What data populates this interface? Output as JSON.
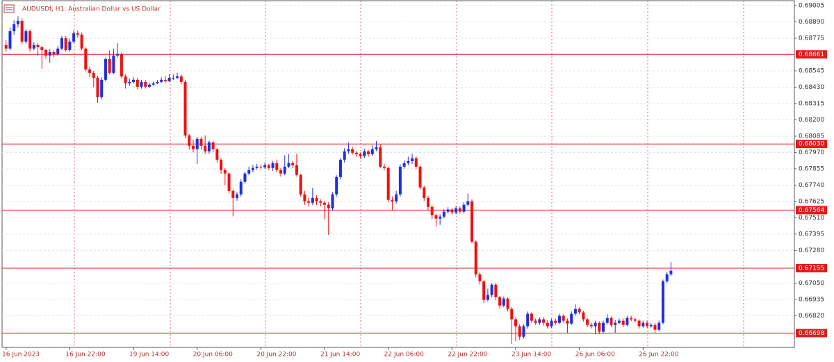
{
  "chart_data": {
    "type": "candlestick",
    "title": "AUDUSDf, H1:  Australian Dollar vs US Dollar",
    "up_color": "#1f2fe0",
    "down_color": "#ee1111",
    "level_color": "#e21b1b",
    "grid": true,
    "ylim": [
      0.66597,
      0.69044
    ],
    "xlim": [
      -1,
      198
    ],
    "yticks": [
      {
        "value": 0.69005,
        "label": "0.69005"
      },
      {
        "value": 0.6889,
        "label": "0.68890"
      },
      {
        "value": 0.68775,
        "label": "0.68775"
      },
      {
        "value": 0.68545,
        "label": "0.68545"
      },
      {
        "value": 0.6843,
        "label": "0.68430"
      },
      {
        "value": 0.68315,
        "label": "0.68315"
      },
      {
        "value": 0.682,
        "label": "0.68200"
      },
      {
        "value": 0.68085,
        "label": "0.68085"
      },
      {
        "value": 0.6797,
        "label": "0.67970"
      },
      {
        "value": 0.67855,
        "label": "0.67855"
      },
      {
        "value": 0.6774,
        "label": "0.67740"
      },
      {
        "value": 0.67625,
        "label": "0.67625"
      },
      {
        "value": 0.6751,
        "label": "0.67510"
      },
      {
        "value": 0.67395,
        "label": "0.67395"
      },
      {
        "value": 0.6728,
        "label": "0.67280"
      },
      {
        "value": 0.6705,
        "label": "0.67050"
      },
      {
        "value": 0.66935,
        "label": "0.66935"
      },
      {
        "value": 0.6682,
        "label": "0.66820"
      }
    ],
    "xticks": [
      {
        "value": 0,
        "label": "16 Jun 2023"
      },
      {
        "value": 16,
        "label": "16 Jun 22:00"
      },
      {
        "value": 32,
        "label": "19 Jun 14:00"
      },
      {
        "value": 48,
        "label": "20 Jun 06:00"
      },
      {
        "value": 64,
        "label": "20 Jun 22:00"
      },
      {
        "value": 80,
        "label": "21 Jun 14:00"
      },
      {
        "value": 96,
        "label": "22 Jun 06:00"
      },
      {
        "value": 112,
        "label": "22 Jun 22:00"
      },
      {
        "value": 128,
        "label": "23 Jun 14:00"
      },
      {
        "value": 144,
        "label": "26 Jun 06:00"
      },
      {
        "value": 160,
        "label": "26 Jun 22:00"
      }
    ],
    "levels": [
      {
        "value": 0.68661,
        "label": "0.68661"
      },
      {
        "value": 0.6803,
        "label": "0.68030"
      },
      {
        "value": 0.67564,
        "label": "0.67564"
      },
      {
        "value": 0.67155,
        "label": "0.67155"
      },
      {
        "value": 0.66698,
        "label": "0.66698"
      }
    ],
    "ohlc": [
      [
        0.68726,
        0.6876,
        0.6868,
        0.68702
      ],
      [
        0.68702,
        0.6885,
        0.6869,
        0.68824
      ],
      [
        0.68824,
        0.689,
        0.688,
        0.68873
      ],
      [
        0.68873,
        0.6893,
        0.6885,
        0.68897
      ],
      [
        0.68897,
        0.68915,
        0.6873,
        0.68751
      ],
      [
        0.68751,
        0.6884,
        0.68735,
        0.68824
      ],
      [
        0.68824,
        0.68835,
        0.6868,
        0.68702
      ],
      [
        0.68702,
        0.68745,
        0.6869,
        0.68726
      ],
      [
        0.68726,
        0.6874,
        0.6865,
        0.68711
      ],
      [
        0.68711,
        0.6872,
        0.6856,
        0.68692
      ],
      [
        0.68692,
        0.687,
        0.6863,
        0.68653
      ],
      [
        0.68653,
        0.687,
        0.686,
        0.68677
      ],
      [
        0.68677,
        0.6869,
        0.6864,
        0.68663
      ],
      [
        0.68663,
        0.6872,
        0.6865,
        0.68702
      ],
      [
        0.68702,
        0.6879,
        0.6869,
        0.68775
      ],
      [
        0.68775,
        0.6879,
        0.6868,
        0.68692
      ],
      [
        0.68692,
        0.6877,
        0.6868,
        0.68751
      ],
      [
        0.68751,
        0.6883,
        0.6874,
        0.68809
      ],
      [
        0.68809,
        0.6883,
        0.6878,
        0.688
      ],
      [
        0.688,
        0.68815,
        0.6869,
        0.68702
      ],
      [
        0.68702,
        0.6871,
        0.6854,
        0.68555
      ],
      [
        0.68555,
        0.68575,
        0.685,
        0.68531
      ],
      [
        0.68531,
        0.68545,
        0.6843,
        0.68496
      ],
      [
        0.68496,
        0.6851,
        0.6832,
        0.68359
      ],
      [
        0.68359,
        0.685,
        0.68345,
        0.68482
      ],
      [
        0.68482,
        0.6864,
        0.6847,
        0.68628
      ],
      [
        0.68628,
        0.6869,
        0.6852,
        0.68531
      ],
      [
        0.68531,
        0.687,
        0.6852,
        0.68653
      ],
      [
        0.68653,
        0.6874,
        0.6864,
        0.68663
      ],
      [
        0.68663,
        0.68675,
        0.6849,
        0.68506
      ],
      [
        0.68506,
        0.6852,
        0.6842,
        0.68457
      ],
      [
        0.68457,
        0.6849,
        0.6844,
        0.68467
      ],
      [
        0.68467,
        0.685,
        0.68455,
        0.68482
      ],
      [
        0.68482,
        0.68495,
        0.68415,
        0.68433
      ],
      [
        0.68433,
        0.6848,
        0.6842,
        0.68467
      ],
      [
        0.68467,
        0.6848,
        0.6842,
        0.68433
      ],
      [
        0.68433,
        0.6846,
        0.68425,
        0.68448
      ],
      [
        0.68448,
        0.6847,
        0.6844,
        0.68457
      ],
      [
        0.68457,
        0.6848,
        0.6845,
        0.68467
      ],
      [
        0.68467,
        0.685,
        0.6846,
        0.68482
      ],
      [
        0.68482,
        0.6851,
        0.6846,
        0.68472
      ],
      [
        0.68472,
        0.6852,
        0.68465,
        0.68496
      ],
      [
        0.68496,
        0.6852,
        0.6848,
        0.68496
      ],
      [
        0.68496,
        0.6853,
        0.68485,
        0.68506
      ],
      [
        0.68506,
        0.6852,
        0.6845,
        0.68467
      ],
      [
        0.68467,
        0.6848,
        0.6807,
        0.6809
      ],
      [
        0.6809,
        0.681,
        0.6799,
        0.68017
      ],
      [
        0.68017,
        0.6806,
        0.6797,
        0.67993
      ],
      [
        0.67993,
        0.6808,
        0.6789,
        0.68066
      ],
      [
        0.68066,
        0.6808,
        0.6799,
        0.68017
      ],
      [
        0.68017,
        0.6809,
        0.6796,
        0.67978
      ],
      [
        0.67978,
        0.68055,
        0.6796,
        0.68041
      ],
      [
        0.68041,
        0.6805,
        0.6797,
        0.67993
      ],
      [
        0.67993,
        0.68,
        0.679,
        0.67919
      ],
      [
        0.67919,
        0.6793,
        0.6782,
        0.67846
      ],
      [
        0.67846,
        0.6786,
        0.6774,
        0.67822
      ],
      [
        0.67822,
        0.6783,
        0.6768,
        0.67699
      ],
      [
        0.67699,
        0.6771,
        0.6752,
        0.6765
      ],
      [
        0.6765,
        0.6769,
        0.6763,
        0.67675
      ],
      [
        0.67675,
        0.6778,
        0.6766,
        0.67763
      ],
      [
        0.67763,
        0.67835,
        0.6775,
        0.67822
      ],
      [
        0.67822,
        0.6787,
        0.6781,
        0.67846
      ],
      [
        0.67846,
        0.6788,
        0.6783,
        0.67861
      ],
      [
        0.67861,
        0.6789,
        0.6785,
        0.6787
      ],
      [
        0.6787,
        0.67885,
        0.6785,
        0.67866
      ],
      [
        0.67866,
        0.679,
        0.67855,
        0.6788
      ],
      [
        0.6788,
        0.6789,
        0.67845,
        0.67861
      ],
      [
        0.67861,
        0.6791,
        0.6784,
        0.67895
      ],
      [
        0.67895,
        0.6792,
        0.6783,
        0.67846
      ],
      [
        0.67846,
        0.6786,
        0.678,
        0.67822
      ],
      [
        0.67822,
        0.6795,
        0.6781,
        0.6787
      ],
      [
        0.6787,
        0.6796,
        0.6786,
        0.67895
      ],
      [
        0.67895,
        0.6791,
        0.6786,
        0.6788
      ],
      [
        0.6788,
        0.6796,
        0.678,
        0.67812
      ],
      [
        0.67812,
        0.6782,
        0.6766,
        0.67675
      ],
      [
        0.67675,
        0.677,
        0.676,
        0.67626
      ],
      [
        0.67626,
        0.6765,
        0.6759,
        0.67616
      ],
      [
        0.67616,
        0.6772,
        0.676,
        0.6765
      ],
      [
        0.6765,
        0.6767,
        0.676,
        0.67626
      ],
      [
        0.67626,
        0.6764,
        0.6759,
        0.67616
      ],
      [
        0.67616,
        0.6763,
        0.675,
        0.67602
      ],
      [
        0.67602,
        0.6762,
        0.6739,
        0.67577
      ],
      [
        0.67577,
        0.6769,
        0.6756,
        0.67675
      ],
      [
        0.67675,
        0.6781,
        0.6766,
        0.67797
      ],
      [
        0.67797,
        0.6793,
        0.6778,
        0.67919
      ],
      [
        0.67919,
        0.68,
        0.679,
        0.67978
      ],
      [
        0.67978,
        0.6804,
        0.6796,
        0.67993
      ],
      [
        0.67993,
        0.6801,
        0.67955,
        0.67968
      ],
      [
        0.67968,
        0.6798,
        0.6794,
        0.67958
      ],
      [
        0.67958,
        0.6797,
        0.67925,
        0.67944
      ],
      [
        0.67944,
        0.67995,
        0.6793,
        0.67978
      ],
      [
        0.67978,
        0.6799,
        0.6794,
        0.67958
      ],
      [
        0.67958,
        0.6802,
        0.67945,
        0.67993
      ],
      [
        0.67993,
        0.6805,
        0.6798,
        0.68007
      ],
      [
        0.68007,
        0.6803,
        0.6786,
        0.6787
      ],
      [
        0.6787,
        0.6789,
        0.67845,
        0.67861
      ],
      [
        0.67861,
        0.6787,
        0.6762,
        0.67636
      ],
      [
        0.67636,
        0.6766,
        0.6756,
        0.67626
      ],
      [
        0.67626,
        0.677,
        0.6761,
        0.67675
      ],
      [
        0.67675,
        0.67885,
        0.6766,
        0.6787
      ],
      [
        0.6787,
        0.67915,
        0.67855,
        0.67895
      ],
      [
        0.67895,
        0.6794,
        0.6788,
        0.67909
      ],
      [
        0.67909,
        0.6796,
        0.6789,
        0.67929
      ],
      [
        0.67929,
        0.67945,
        0.67855,
        0.6787
      ],
      [
        0.6787,
        0.6788,
        0.6771,
        0.67724
      ],
      [
        0.67724,
        0.67735,
        0.6763,
        0.6765
      ],
      [
        0.6765,
        0.67665,
        0.6756,
        0.67587
      ],
      [
        0.67587,
        0.676,
        0.675,
        0.67528
      ],
      [
        0.67528,
        0.6754,
        0.6745,
        0.67504
      ],
      [
        0.67504,
        0.67535,
        0.6746,
        0.67518
      ],
      [
        0.67518,
        0.6757,
        0.67505,
        0.67553
      ],
      [
        0.67553,
        0.67585,
        0.6754,
        0.67568
      ],
      [
        0.67568,
        0.6758,
        0.6753,
        0.67548
      ],
      [
        0.67548,
        0.6759,
        0.67535,
        0.67577
      ],
      [
        0.67577,
        0.6759,
        0.6754,
        0.67553
      ],
      [
        0.67553,
        0.6762,
        0.6754,
        0.67602
      ],
      [
        0.67602,
        0.6768,
        0.6759,
        0.67626
      ],
      [
        0.67626,
        0.6764,
        0.6733,
        0.67342
      ],
      [
        0.67342,
        0.6735,
        0.6709,
        0.67112
      ],
      [
        0.67112,
        0.67125,
        0.6704,
        0.67063
      ],
      [
        0.67063,
        0.6707,
        0.6691,
        0.66932
      ],
      [
        0.66932,
        0.6701,
        0.6692,
        0.66966
      ],
      [
        0.66966,
        0.6705,
        0.6695,
        0.67039
      ],
      [
        0.67039,
        0.6705,
        0.6693,
        0.66951
      ],
      [
        0.66951,
        0.6696,
        0.6687,
        0.66892
      ],
      [
        0.66892,
        0.66955,
        0.6688,
        0.66941
      ],
      [
        0.66941,
        0.6695,
        0.6685,
        0.66868
      ],
      [
        0.66868,
        0.6688,
        0.6662,
        0.66795
      ],
      [
        0.66795,
        0.6681,
        0.6664,
        0.66746
      ],
      [
        0.66746,
        0.6676,
        0.6665,
        0.66672
      ],
      [
        0.66672,
        0.6676,
        0.6666,
        0.66746
      ],
      [
        0.66746,
        0.6685,
        0.6673,
        0.66834
      ],
      [
        0.66834,
        0.66845,
        0.6677,
        0.66785
      ],
      [
        0.66785,
        0.668,
        0.66755,
        0.6677
      ],
      [
        0.6677,
        0.6681,
        0.66755,
        0.66795
      ],
      [
        0.66795,
        0.6681,
        0.6675,
        0.6677
      ],
      [
        0.6677,
        0.6679,
        0.6673,
        0.66746
      ],
      [
        0.66746,
        0.668,
        0.66735,
        0.66785
      ],
      [
        0.66785,
        0.668,
        0.66755,
        0.6677
      ],
      [
        0.6677,
        0.66835,
        0.6676,
        0.66819
      ],
      [
        0.66819,
        0.6683,
        0.6677,
        0.66785
      ],
      [
        0.66785,
        0.668,
        0.667,
        0.66765
      ],
      [
        0.66765,
        0.6685,
        0.66755,
        0.66834
      ],
      [
        0.66834,
        0.669,
        0.6682,
        0.66868
      ],
      [
        0.66868,
        0.6688,
        0.6683,
        0.66844
      ],
      [
        0.66844,
        0.66855,
        0.6678,
        0.66795
      ],
      [
        0.66795,
        0.66805,
        0.6674,
        0.66755
      ],
      [
        0.66755,
        0.6677,
        0.6673,
        0.66746
      ],
      [
        0.66746,
        0.66785,
        0.6669,
        0.6677
      ],
      [
        0.6677,
        0.6678,
        0.6669,
        0.66707
      ],
      [
        0.66707,
        0.66785,
        0.66695,
        0.6677
      ],
      [
        0.6677,
        0.6683,
        0.6676,
        0.66804
      ],
      [
        0.66804,
        0.66815,
        0.6674,
        0.66755
      ],
      [
        0.66755,
        0.6679,
        0.667,
        0.6677
      ],
      [
        0.6677,
        0.668,
        0.6676,
        0.66785
      ],
      [
        0.66785,
        0.668,
        0.6674,
        0.66755
      ],
      [
        0.66755,
        0.6682,
        0.66745,
        0.66804
      ],
      [
        0.66804,
        0.6682,
        0.6678,
        0.66795
      ],
      [
        0.66795,
        0.66805,
        0.6677,
        0.66785
      ],
      [
        0.66785,
        0.66795,
        0.6673,
        0.66746
      ],
      [
        0.66746,
        0.66785,
        0.66735,
        0.6677
      ],
      [
        0.6677,
        0.66785,
        0.66735,
        0.66746
      ],
      [
        0.66746,
        0.6677,
        0.66735,
        0.66755
      ],
      [
        0.66755,
        0.6677,
        0.667,
        0.66721
      ],
      [
        0.66721,
        0.66785,
        0.6671,
        0.6677
      ],
      [
        0.6677,
        0.67075,
        0.6676,
        0.67063
      ],
      [
        0.67063,
        0.6713,
        0.6705,
        0.67112
      ],
      [
        0.67112,
        0.672,
        0.671,
        0.67137
      ]
    ]
  }
}
